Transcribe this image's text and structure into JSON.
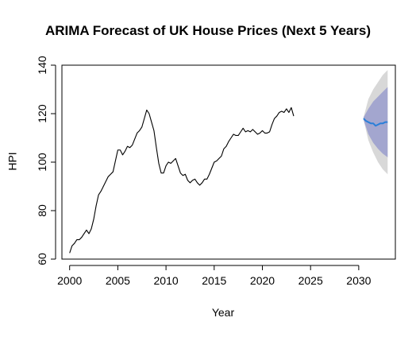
{
  "chart_data": {
    "type": "line",
    "title": "ARIMA Forecast of UK House Prices (Next 5 Years)",
    "xlabel": "Year",
    "ylabel": "HPI",
    "xlim": [
      1999.2,
      2033.8
    ],
    "ylim": [
      60,
      140
    ],
    "x_ticks": [
      2000,
      2005,
      2010,
      2015,
      2020,
      2025,
      2030
    ],
    "y_ticks": [
      60,
      80,
      100,
      120,
      140
    ],
    "grid": false,
    "legend": "none",
    "series": [
      {
        "role": "observed",
        "color": "#000000",
        "points": [
          [
            2000.0,
            62.5
          ],
          [
            2000.25,
            65.5
          ],
          [
            2000.5,
            66.5
          ],
          [
            2000.75,
            68.0
          ],
          [
            2001.0,
            68.0
          ],
          [
            2001.25,
            69.0
          ],
          [
            2001.5,
            70.5
          ],
          [
            2001.75,
            72.0
          ],
          [
            2002.0,
            70.5
          ],
          [
            2002.25,
            72.5
          ],
          [
            2002.5,
            76.5
          ],
          [
            2002.75,
            82.0
          ],
          [
            2003.0,
            86.5
          ],
          [
            2003.25,
            88.0
          ],
          [
            2003.5,
            90.0
          ],
          [
            2003.75,
            92.0
          ],
          [
            2004.0,
            94.0
          ],
          [
            2004.25,
            95.0
          ],
          [
            2004.5,
            96.0
          ],
          [
            2004.75,
            100.5
          ],
          [
            2005.0,
            105.0
          ],
          [
            2005.25,
            105.0
          ],
          [
            2005.5,
            103.0
          ],
          [
            2005.75,
            104.5
          ],
          [
            2006.0,
            106.5
          ],
          [
            2006.25,
            106.0
          ],
          [
            2006.5,
            107.0
          ],
          [
            2006.75,
            109.5
          ],
          [
            2007.0,
            112.0
          ],
          [
            2007.25,
            113.0
          ],
          [
            2007.5,
            114.5
          ],
          [
            2007.75,
            118.0
          ],
          [
            2008.0,
            121.5
          ],
          [
            2008.25,
            120.0
          ],
          [
            2008.5,
            116.5
          ],
          [
            2008.75,
            113.0
          ],
          [
            2009.0,
            106.0
          ],
          [
            2009.25,
            99.5
          ],
          [
            2009.5,
            95.5
          ],
          [
            2009.75,
            95.5
          ],
          [
            2010.0,
            98.5
          ],
          [
            2010.25,
            100.0
          ],
          [
            2010.5,
            99.5
          ],
          [
            2010.75,
            100.5
          ],
          [
            2011.0,
            101.5
          ],
          [
            2011.25,
            98.5
          ],
          [
            2011.5,
            95.5
          ],
          [
            2011.75,
            94.5
          ],
          [
            2012.0,
            95.0
          ],
          [
            2012.25,
            92.5
          ],
          [
            2012.5,
            91.5
          ],
          [
            2012.75,
            92.5
          ],
          [
            2013.0,
            93.0
          ],
          [
            2013.25,
            91.5
          ],
          [
            2013.5,
            90.5
          ],
          [
            2013.75,
            91.5
          ],
          [
            2014.0,
            93.0
          ],
          [
            2014.25,
            93.0
          ],
          [
            2014.5,
            95.0
          ],
          [
            2014.75,
            97.5
          ],
          [
            2015.0,
            100.0
          ],
          [
            2015.25,
            100.5
          ],
          [
            2015.5,
            101.5
          ],
          [
            2015.75,
            102.5
          ],
          [
            2016.0,
            105.5
          ],
          [
            2016.25,
            106.5
          ],
          [
            2016.5,
            108.5
          ],
          [
            2016.75,
            110.0
          ],
          [
            2017.0,
            111.5
          ],
          [
            2017.25,
            111.0
          ],
          [
            2017.5,
            111.0
          ],
          [
            2017.75,
            112.5
          ],
          [
            2018.0,
            114.0
          ],
          [
            2018.25,
            112.5
          ],
          [
            2018.5,
            113.0
          ],
          [
            2018.75,
            112.5
          ],
          [
            2019.0,
            113.5
          ],
          [
            2019.25,
            112.5
          ],
          [
            2019.5,
            111.5
          ],
          [
            2019.75,
            112.0
          ],
          [
            2020.0,
            113.0
          ],
          [
            2020.25,
            112.0
          ],
          [
            2020.5,
            112.0
          ],
          [
            2020.75,
            112.5
          ],
          [
            2021.0,
            115.5
          ],
          [
            2021.25,
            118.0
          ],
          [
            2021.5,
            119.0
          ],
          [
            2021.75,
            120.5
          ],
          [
            2022.0,
            121.0
          ],
          [
            2022.25,
            120.5
          ],
          [
            2022.5,
            122.0
          ],
          [
            2022.75,
            120.5
          ],
          [
            2023.0,
            122.5
          ],
          [
            2023.25,
            119.0
          ]
        ]
      },
      {
        "role": "forecast_mean",
        "color": "#2b7fd8",
        "points": [
          [
            2030.5,
            118.0
          ],
          [
            2030.75,
            117.0
          ],
          [
            2031.0,
            116.5
          ],
          [
            2031.25,
            116.0
          ],
          [
            2031.5,
            116.0
          ],
          [
            2031.75,
            115.0
          ],
          [
            2032.0,
            115.5
          ],
          [
            2032.25,
            116.0
          ],
          [
            2032.5,
            116.0
          ],
          [
            2032.75,
            116.5
          ],
          [
            2033.0,
            116.5
          ]
        ]
      }
    ],
    "intervals": [
      {
        "role": "outer_band",
        "color": "#d8d8d8",
        "x": [
          2030.5,
          2031.0,
          2031.5,
          2032.0,
          2032.5,
          2033.0
        ],
        "lower": [
          117.5,
          109.0,
          104.0,
          100.0,
          97.0,
          95.0
        ],
        "upper": [
          118.5,
          126.0,
          130.0,
          133.0,
          136.0,
          138.0
        ]
      },
      {
        "role": "inner_band",
        "color": "#a3a6cf",
        "x": [
          2030.5,
          2031.0,
          2031.5,
          2032.0,
          2032.5,
          2033.0
        ],
        "lower": [
          117.5,
          111.5,
          108.0,
          105.5,
          103.5,
          102.0
        ],
        "upper": [
          118.5,
          122.0,
          125.0,
          127.0,
          129.0,
          131.0
        ]
      }
    ],
    "observed_x_labels_note": ""
  }
}
